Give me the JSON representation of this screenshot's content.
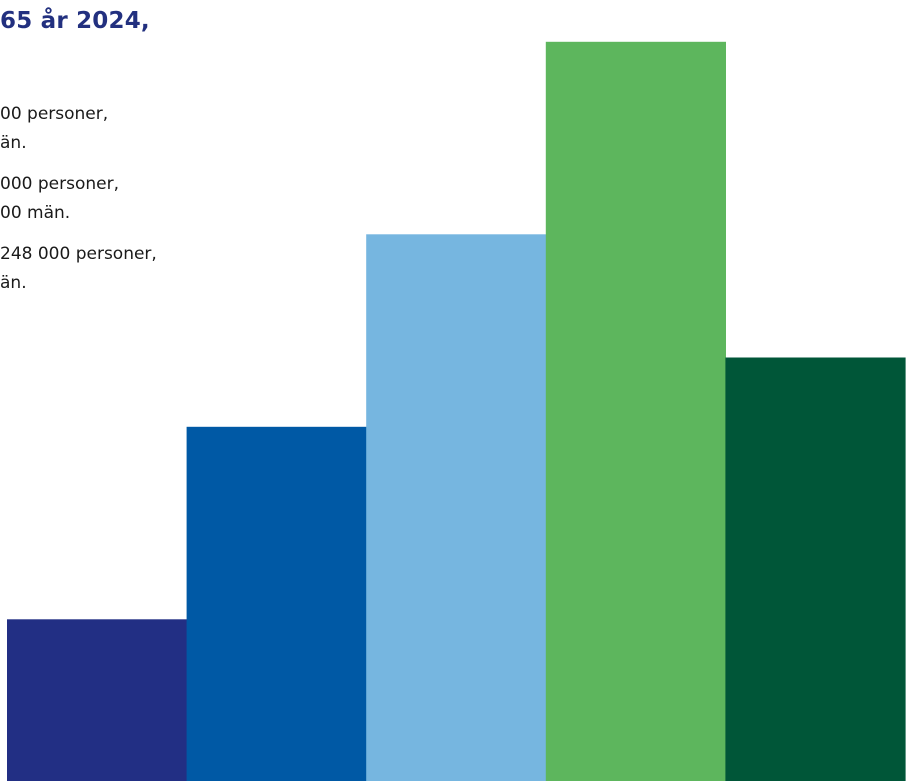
{
  "header": {
    "heading": "65 år 2024,",
    "heading_color": "#22307f"
  },
  "facts": [
    {
      "line1": "00 personer,",
      "line2": "än."
    },
    {
      "line1": "000 personer,",
      "line2": "00 män."
    },
    {
      "line1": "248 000 personer,",
      "line2": "än."
    }
  ],
  "chart_data": {
    "type": "bar",
    "categories": [
      "",
      "",
      "",
      "",
      ""
    ],
    "values": [
      21,
      46,
      71,
      96,
      55
    ],
    "ylim": [
      0,
      100
    ],
    "grid": false,
    "legend": "none",
    "colors": [
      "#222f84",
      "#0059a5",
      "#76b6e0",
      "#5db65d",
      "#005638"
    ]
  }
}
